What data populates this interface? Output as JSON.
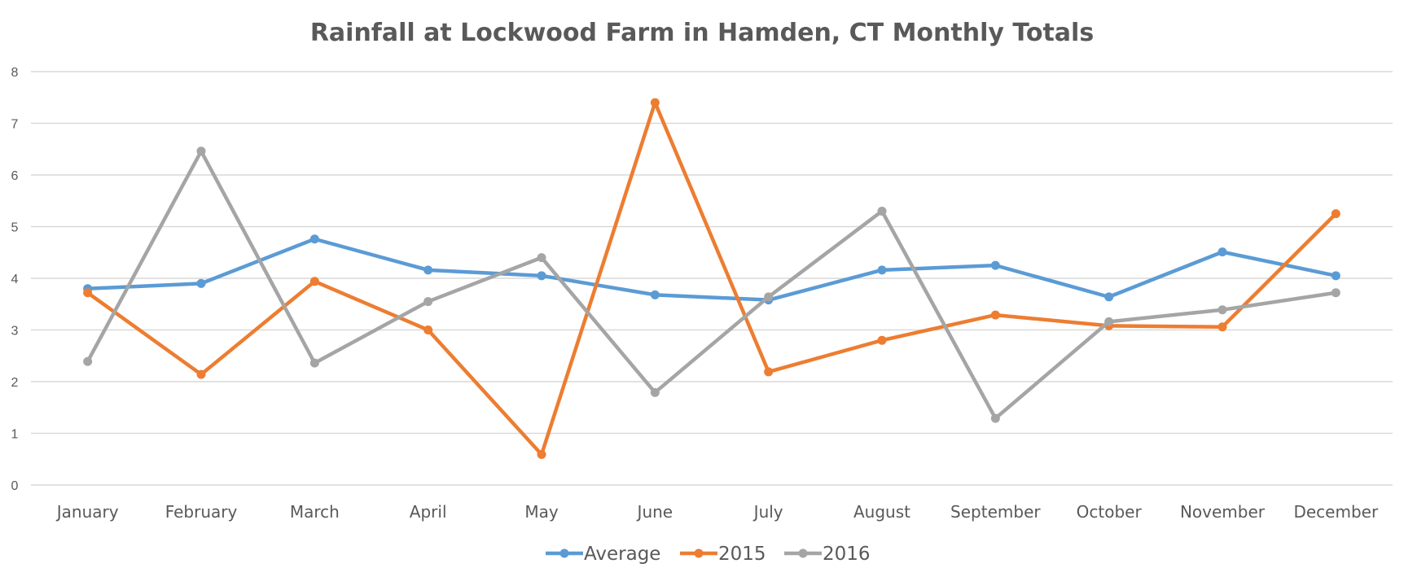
{
  "chart_data": {
    "type": "line",
    "title": "Rainfall at Lockwood Farm in Hamden, CT Monthly Totals",
    "xlabel": "",
    "ylabel": "",
    "ylim": [
      0,
      8
    ],
    "yticks": [
      "0",
      "1",
      "2",
      "3",
      "4",
      "5",
      "6",
      "7",
      "8"
    ],
    "grid": true,
    "legend_position": "bottom",
    "categories": [
      "January",
      "February",
      "March",
      "April",
      "May",
      "June",
      "July",
      "August",
      "September",
      "October",
      "November",
      "December"
    ],
    "series": [
      {
        "name": "Average",
        "color": "#5b9bd5",
        "values": [
          3.8,
          3.9,
          4.76,
          4.16,
          4.05,
          3.68,
          3.58,
          4.16,
          4.25,
          3.64,
          4.51,
          4.05
        ]
      },
      {
        "name": "2015",
        "color": "#ed7d31",
        "values": [
          3.72,
          2.14,
          3.94,
          3.0,
          0.59,
          7.4,
          2.19,
          2.8,
          3.29,
          3.08,
          3.06,
          5.25
        ]
      },
      {
        "name": "2016",
        "color": "#a5a5a5",
        "values": [
          2.39,
          6.46,
          2.36,
          3.55,
          4.4,
          1.79,
          3.64,
          5.3,
          1.29,
          3.16,
          3.39,
          3.72
        ]
      }
    ]
  }
}
